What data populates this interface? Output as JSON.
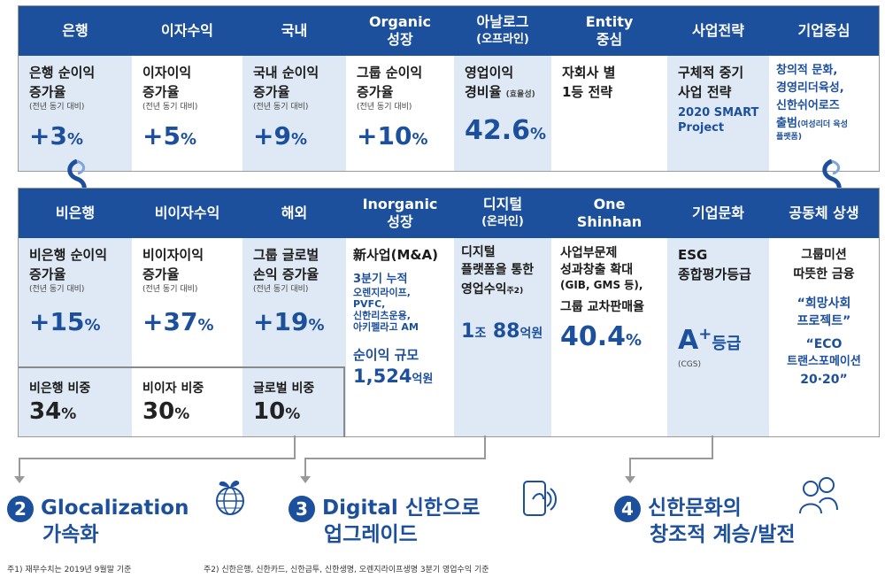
{
  "top": {
    "c1": {
      "header": "은행",
      "label1": "은행 순이익",
      "label2": "증가율",
      "note": "(전년 동기 대비)",
      "value": "+3",
      "unit": "%"
    },
    "c2": {
      "header": "이자수익",
      "label1": "이자이익",
      "label2": "증가율",
      "note": "(전년 동기 대비)",
      "value": "+5",
      "unit": "%"
    },
    "c3": {
      "header": "국내",
      "label1": "국내 순이익",
      "label2": "증가율",
      "note": "(전년 동기 대비)",
      "value": "+9",
      "unit": "%"
    },
    "c4": {
      "header1": "Organic",
      "header2": "성장",
      "label1": "그룹 순이익",
      "label2": "증가율",
      "note": "(전년 동기 대비)",
      "value": "+10",
      "unit": "%"
    },
    "c5": {
      "header1": "아날로그",
      "header2": "(오프라인)",
      "label1": "영업이익",
      "label2": "경비율",
      "label2_note": "(효율성)",
      "value": "42.6",
      "unit": "%"
    },
    "c6": {
      "header1": "Entity",
      "header2": "중심",
      "label1": "자회사 별",
      "label2": "1등 전략"
    },
    "c7": {
      "header": "사업전략",
      "label1": "구체적 중기",
      "label2": "사업 전략",
      "line3": "2020 SMART",
      "line4": "Project"
    },
    "c8": {
      "header": "기업중심",
      "line1": "창의적 문화,",
      "line2": "경영리더육성,",
      "line3": "신한쉬어로즈",
      "line4": "출범",
      "line4_note": "(여성리더 육성",
      "line5_note": "플랫폼)"
    }
  },
  "bot": {
    "c1": {
      "header": "비은행",
      "label1": "비은행 순이익",
      "label2": "증가율",
      "note": "(전년 동기 대비)",
      "value": "+15",
      "unit": "%",
      "share_label": "비은행 비중",
      "share_value": "34",
      "share_unit": "%"
    },
    "c2": {
      "header": "비이자수익",
      "label1": "비이자이익",
      "label2": "증가율",
      "note": "(전년 동기 대비)",
      "value": "+37",
      "unit": "%",
      "share_label": "비이자 비중",
      "share_value": "30",
      "share_unit": "%"
    },
    "c3": {
      "header": "해외",
      "label1": "그룹 글로벌",
      "label2": "손익 증가율",
      "note": "(전년 동기 대비)",
      "value": "+19",
      "unit": "%",
      "share_label": "글로벌 비중",
      "share_value": "10",
      "share_unit": "%"
    },
    "c4": {
      "header1": "Inorganic",
      "header2": "성장",
      "label1": "新사업(M&A)",
      "q_label": "3분기 누적",
      "items1": "오렌지라이프,",
      "items2": "PVFC,",
      "items3": "신한리츠운용,",
      "items4": "아키펠라고 AM",
      "net_label": "순이익 규모",
      "net_value": "1,524",
      "net_unit": "억원"
    },
    "c5": {
      "header1": "디지털",
      "header2": "(온라인)",
      "label1": "디지털",
      "label2": "플랫폼을 통한",
      "label3": "영업수익",
      "label3_note": "주2)",
      "value1": "1",
      "unit1": "조",
      "value2": "88",
      "unit2": "억원"
    },
    "c6": {
      "header1": "One",
      "header2": "Shinhan",
      "label1": "사업부문제",
      "label2": "성과창출 확대",
      "label3": "(GIB, GMS 등),",
      "label4": "그룹 교차판매율",
      "value": "40.4",
      "unit": "%"
    },
    "c7": {
      "header": "기업문화",
      "label1": "ESG",
      "label2": "종합평가등급",
      "value": "A",
      "value_sup": "+",
      "unit": "등급",
      "note": "(CGS)"
    },
    "c8": {
      "header": "공동체 상생",
      "label1": "그룹미션",
      "label2": "따뜻한 금융",
      "q1": "“희망사회",
      "q2": "프로젝트”",
      "q3": "“ECO",
      "q4": "트랜스포메이션",
      "q5": "20·20”"
    }
  },
  "themes": [
    {
      "num": "2",
      "line1": "Glocalization",
      "line2": "가속화",
      "icon": "globe-plant-icon"
    },
    {
      "num": "3",
      "line1": "Digital 신한으로",
      "line2": "업그레이드",
      "icon": "phone-tap-icon"
    },
    {
      "num": "4",
      "line1": "신한문화의",
      "line2": "창조적 계승/발전",
      "icon": "people-icon"
    }
  ],
  "footnotes": {
    "note1": "주1) 재무수치는 2019년 9월말 기준",
    "note2": "주2) 신한은행, 신한카드, 신한금투, 신한생명, 오렌지라이프생명 3분기 영업수익 기준"
  },
  "colors": {
    "header_blue": "#1c4f9c",
    "light_blue": "#dfe9f6"
  }
}
